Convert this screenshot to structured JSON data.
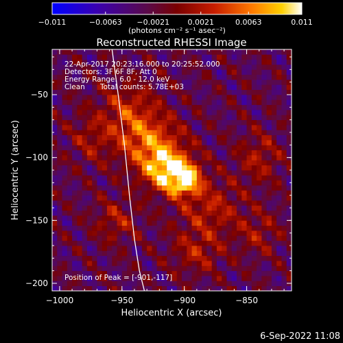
{
  "chart_data": {
    "type": "heatmap",
    "title": "Reconstructed RHESSI Image",
    "xlabel": "Heliocentric X (arcsec)",
    "ylabel": "Heliocentric Y (arcsec)",
    "xlim": [
      -1006,
      -814
    ],
    "ylim": [
      -206,
      -14
    ],
    "x_ticks": [
      -1000,
      -950,
      -900,
      -850
    ],
    "x_tick_labels": [
      "−1000",
      "−950",
      "−900",
      "−850"
    ],
    "y_ticks": [
      -50,
      -100,
      -150,
      -200
    ],
    "y_tick_labels": [
      "−50",
      "−100",
      "−150",
      "−200"
    ],
    "colorbar": {
      "min": -0.011,
      "max": 0.011,
      "ticks": [
        -0.011,
        -0.0063,
        -0.0021,
        0.0021,
        0.0063,
        0.011
      ],
      "tick_labels": [
        "−0.011",
        "−0.0063",
        "−0.0021",
        "0.0021",
        "0.0063",
        "0.011"
      ],
      "unit_label": "(photons cm⁻² s⁻¹ asec⁻²)"
    },
    "annotations": {
      "time_range": "22-Apr-2017 20:23:16.000 to 20:25:52.000",
      "detectors": "Detectors: 3F 6F 8F, Att 0",
      "energy": "Energy Range: 6.0 - 12.0 keV",
      "method": "Clean",
      "counts": "Total counts: 5.78E+03",
      "peak": "Position of Peak = [-901,-117]"
    },
    "sources": [
      {
        "x": -901,
        "y": -117,
        "amp": 1.0,
        "sx": 9,
        "sy": 8
      },
      {
        "x": -915,
        "y": -108,
        "amp": 0.85,
        "sx": 14,
        "sy": 12
      },
      {
        "x": -930,
        "y": -85,
        "amp": 0.55,
        "sx": 18,
        "sy": 14
      },
      {
        "x": -945,
        "y": -60,
        "amp": 0.35,
        "sx": 16,
        "sy": 14
      },
      {
        "x": -880,
        "y": -140,
        "amp": 0.35,
        "sx": 18,
        "sy": 16
      },
      {
        "x": -890,
        "y": -175,
        "amp": 0.3,
        "sx": 14,
        "sy": 12
      },
      {
        "x": -955,
        "y": -150,
        "amp": 0.3,
        "sx": 12,
        "sy": 12
      },
      {
        "x": -840,
        "y": -100,
        "amp": 0.3,
        "sx": 12,
        "sy": 14
      },
      {
        "x": -840,
        "y": -160,
        "amp": 0.25,
        "sx": 12,
        "sy": 12
      },
      {
        "x": -975,
        "y": -85,
        "amp": 0.25,
        "sx": 12,
        "sy": 14
      }
    ],
    "limb_curve": {
      "x": [
        -958,
        -953,
        -948,
        -944,
        -940,
        -936,
        -932
      ],
      "y": [
        -14,
        -50,
        -90,
        -130,
        -165,
        -190,
        -206
      ]
    }
  },
  "footer": {
    "date": "6-Sep-2022 11:08"
  }
}
